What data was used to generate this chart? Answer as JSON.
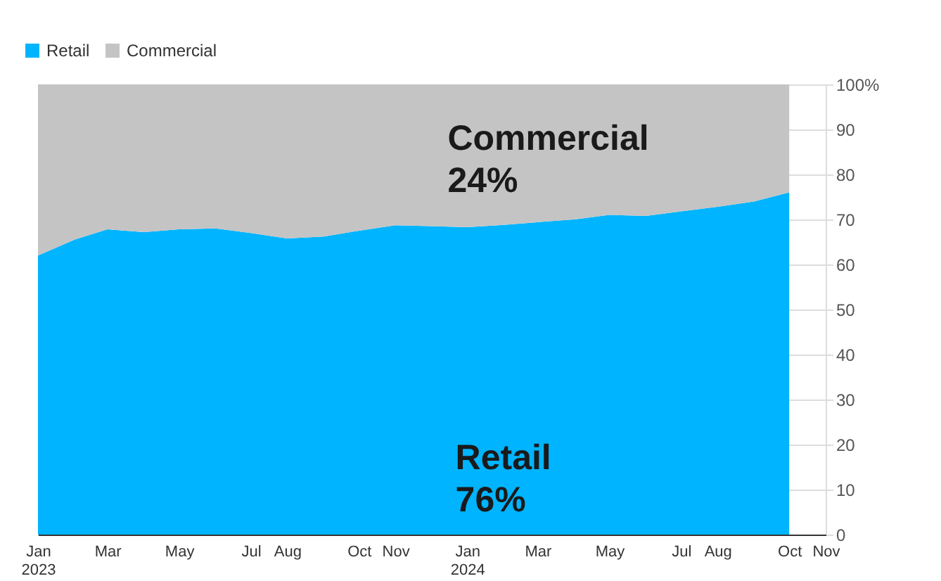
{
  "chart_data": {
    "type": "area",
    "stacked": true,
    "legend": "top left",
    "grid": "y",
    "x": [
      "2023-01",
      "2023-02",
      "2023-03",
      "2023-04",
      "2023-05",
      "2023-06",
      "2023-07",
      "2023-08",
      "2023-09",
      "2023-10",
      "2023-11",
      "2023-12",
      "2024-01",
      "2024-02",
      "2024-03",
      "2024-04",
      "2024-05",
      "2024-06",
      "2024-07",
      "2024-08",
      "2024-09",
      "2024-10"
    ],
    "series": [
      {
        "name": "Retail",
        "color": "#00b4ff",
        "values": [
          62,
          65.5,
          67.8,
          67.2,
          67.8,
          68,
          67,
          65.8,
          66.2,
          67.5,
          68.7,
          68.5,
          68.3,
          68.8,
          69.4,
          70,
          71,
          70.8,
          71.8,
          72.8,
          74,
          76
        ]
      },
      {
        "name": "Commercial",
        "color": "#c4c4c4",
        "values": [
          38,
          34.5,
          32.2,
          32.8,
          32.2,
          32,
          33,
          34.2,
          33.8,
          32.5,
          31.3,
          31.5,
          31.7,
          31.2,
          30.6,
          30,
          29,
          29.2,
          28.2,
          27.2,
          26,
          24
        ]
      }
    ],
    "xlim": [
      "2023-01",
      "2024-11"
    ],
    "xticks": [
      {
        "value": "2023-01",
        "label": "Jan 2023"
      },
      {
        "value": "2023-03",
        "label": "Mar"
      },
      {
        "value": "2023-05",
        "label": "May"
      },
      {
        "value": "2023-07",
        "label": "Jul"
      },
      {
        "value": "2023-08",
        "label": "Aug"
      },
      {
        "value": "2023-10",
        "label": "Oct"
      },
      {
        "value": "2023-11",
        "label": "Nov"
      },
      {
        "value": "2024-01",
        "label": "Jan 2024"
      },
      {
        "value": "2024-03",
        "label": "Mar"
      },
      {
        "value": "2024-05",
        "label": "May"
      },
      {
        "value": "2024-07",
        "label": "Jul"
      },
      {
        "value": "2024-08",
        "label": "Aug"
      },
      {
        "value": "2024-10",
        "label": "Oct"
      },
      {
        "value": "2024-11",
        "label": "Nov"
      }
    ],
    "ylim": [
      0,
      100
    ],
    "yticks": [
      0,
      10,
      20,
      30,
      40,
      50,
      60,
      70,
      80,
      90,
      {
        "value": 100,
        "label": "100%"
      }
    ],
    "annotations": [
      "Commercial 24%",
      "Retail 76%"
    ]
  }
}
